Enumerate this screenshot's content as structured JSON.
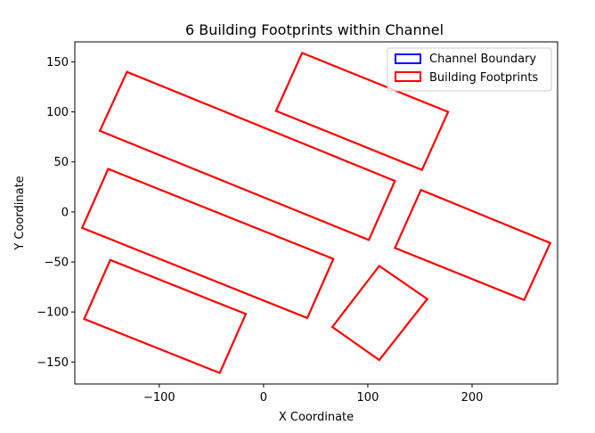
{
  "chart_data": {
    "type": "polygon",
    "title": "6 Building Footprints within Channel",
    "xlabel": "X Coordinate",
    "ylabel": "Y Coordinate",
    "xlim": [
      -181,
      282
    ],
    "ylim": [
      -172,
      170
    ],
    "xticks": [
      -100,
      0,
      100,
      200
    ],
    "yticks": [
      -150,
      -100,
      -50,
      0,
      50,
      100,
      150
    ],
    "xtick_labels": [
      "−100",
      "0",
      "100",
      "200"
    ],
    "ytick_labels": [
      "−150",
      "−100",
      "−50",
      "0",
      "50",
      "100",
      "150"
    ],
    "grid": false,
    "legend_position": "top-right",
    "legend": [
      {
        "label": "Channel Boundary",
        "color": "#0000ff"
      },
      {
        "label": "Building Footprints",
        "color": "#ff0000"
      }
    ],
    "series": [
      {
        "name": "Building Footprints",
        "color": "#ff0000",
        "polygons": [
          [
            [
              -157,
              81
            ],
            [
              -131,
              140
            ],
            [
              126,
              31
            ],
            [
              101,
              -28
            ]
          ],
          [
            [
              12,
              101
            ],
            [
              37,
              159
            ],
            [
              177,
              100
            ],
            [
              152,
              42
            ]
          ],
          [
            [
              -174,
              -16
            ],
            [
              -149,
              43
            ],
            [
              67,
              -47
            ],
            [
              42,
              -106
            ]
          ],
          [
            [
              126,
              -36
            ],
            [
              151,
              22
            ],
            [
              275,
              -31
            ],
            [
              250,
              -88
            ]
          ],
          [
            [
              -172,
              -107
            ],
            [
              -147,
              -48
            ],
            [
              -17,
              -102
            ],
            [
              -42,
              -161
            ]
          ],
          [
            [
              66,
              -115
            ],
            [
              111,
              -54
            ],
            [
              157,
              -87
            ],
            [
              111,
              -148
            ]
          ]
        ]
      }
    ]
  }
}
